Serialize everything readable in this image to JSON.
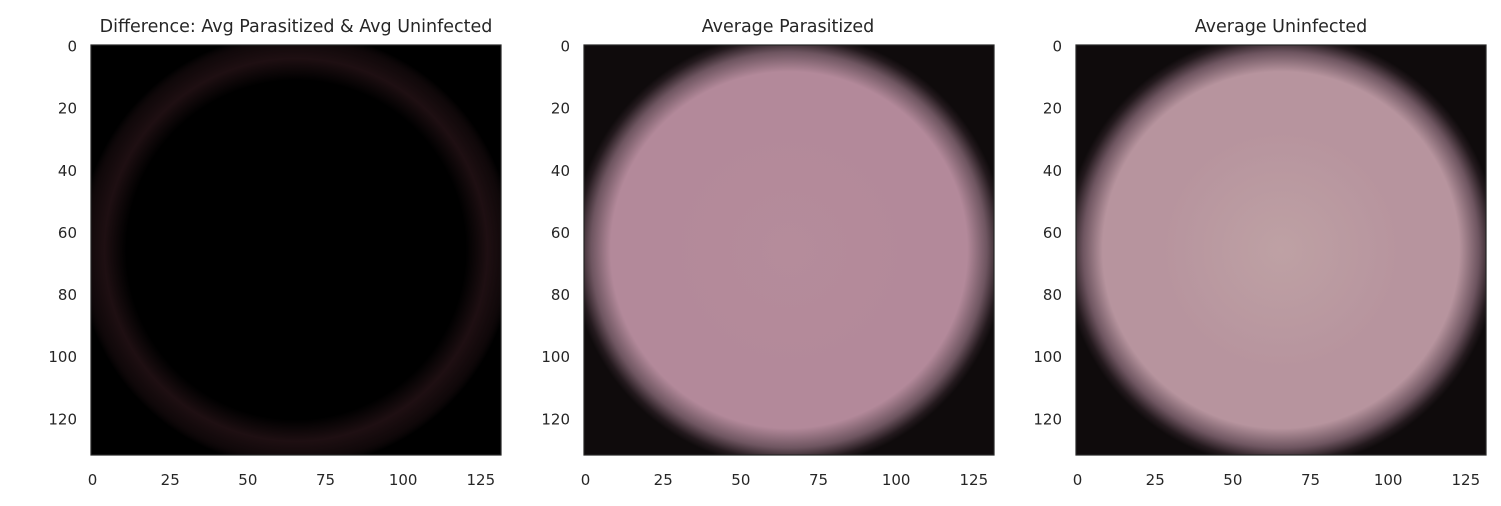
{
  "chart_data": [
    {
      "type": "heatmap",
      "title": "Difference: Avg Parasitized & Avg Uninfected",
      "image_shape": [
        132,
        132
      ],
      "xticks": [
        0,
        25,
        50,
        75,
        100,
        125
      ],
      "yticks": [
        0,
        20,
        40,
        60,
        80,
        100,
        120
      ],
      "xlim": [
        -0.5,
        131.5
      ],
      "ylim": [
        131.5,
        -0.5
      ],
      "content": "near-black image with a faint dark-reddish ring at the cell boundary",
      "center_color": "#000000",
      "ring_color": "#1e0f12",
      "edge_color": "#000000",
      "cell_radius": 64,
      "grid": false
    },
    {
      "type": "heatmap",
      "title": "Average Parasitized",
      "image_shape": [
        132,
        132
      ],
      "xticks": [
        0,
        25,
        50,
        75,
        100,
        125
      ],
      "yticks": [
        0,
        20,
        40,
        60,
        80,
        100,
        120
      ],
      "xlim": [
        -0.5,
        131.5
      ],
      "ylim": [
        131.5,
        -0.5
      ],
      "content": "pink averaged cell disc on a black background",
      "center_color": "#b58c9b",
      "mid_color": "#b3899a",
      "edge_color": "#0f0b0c",
      "cell_radius": 64,
      "grid": false
    },
    {
      "type": "heatmap",
      "title": "Average Uninfected",
      "image_shape": [
        132,
        132
      ],
      "xticks": [
        0,
        25,
        50,
        75,
        100,
        125
      ],
      "yticks": [
        0,
        20,
        40,
        60,
        80,
        100,
        120
      ],
      "xlim": [
        -0.5,
        131.5
      ],
      "ylim": [
        131.5,
        -0.5
      ],
      "content": "pale pink averaged cell disc on a black background",
      "center_color": "#bea1a4",
      "mid_color": "#b7949e",
      "edge_color": "#0f0b0c",
      "cell_radius": 64,
      "grid": false
    }
  ]
}
